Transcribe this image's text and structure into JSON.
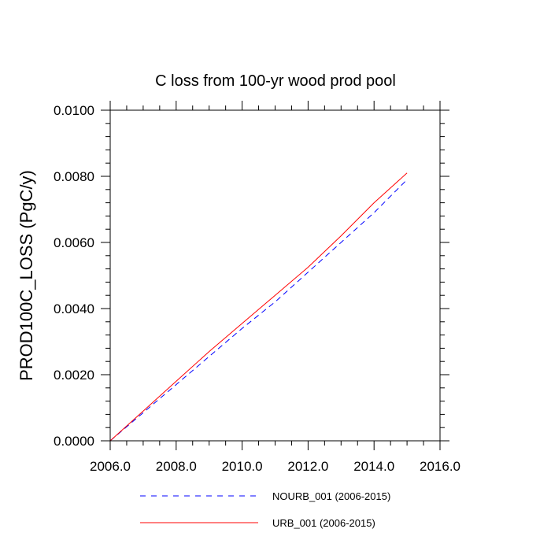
{
  "chart_data": {
    "type": "line",
    "title": "C loss from 100-yr wood prod pool",
    "xlabel": "",
    "ylabel": "PROD100C_LOSS  (PgC/y)",
    "xlim": [
      2006.0,
      2016.0
    ],
    "ylim": [
      0.0,
      0.01
    ],
    "xticks": [
      2006.0,
      2008.0,
      2010.0,
      2012.0,
      2014.0,
      2016.0
    ],
    "xtick_labels": [
      "2006.0",
      "2008.0",
      "2010.0",
      "2012.0",
      "2014.0",
      "2016.0"
    ],
    "yticks": [
      0.0,
      0.002,
      0.004,
      0.006,
      0.008,
      0.01
    ],
    "ytick_labels": [
      "0.0000",
      "0.0020",
      "0.0040",
      "0.0060",
      "0.0080",
      "0.0100"
    ],
    "grid": false,
    "legend_position": "bottom",
    "series": [
      {
        "name": "NOURB_001 (2006-2015)",
        "color": "#0000ff",
        "dash": "dashed",
        "x": [
          2006.0,
          2007.0,
          2008.0,
          2009.0,
          2010.0,
          2011.0,
          2012.0,
          2013.0,
          2014.0,
          2015.0
        ],
        "y": [
          0.0,
          0.00085,
          0.0017,
          0.00255,
          0.0034,
          0.0042,
          0.0051,
          0.006,
          0.0069,
          0.0079
        ]
      },
      {
        "name": "URB_001 (2006-2015)",
        "color": "#ff0000",
        "dash": "solid",
        "x": [
          2006.0,
          2007.0,
          2008.0,
          2009.0,
          2010.0,
          2011.0,
          2012.0,
          2013.0,
          2014.0,
          2015.0
        ],
        "y": [
          0.0,
          0.0009,
          0.0018,
          0.0027,
          0.00355,
          0.0044,
          0.00525,
          0.0062,
          0.0072,
          0.0081
        ]
      }
    ]
  }
}
